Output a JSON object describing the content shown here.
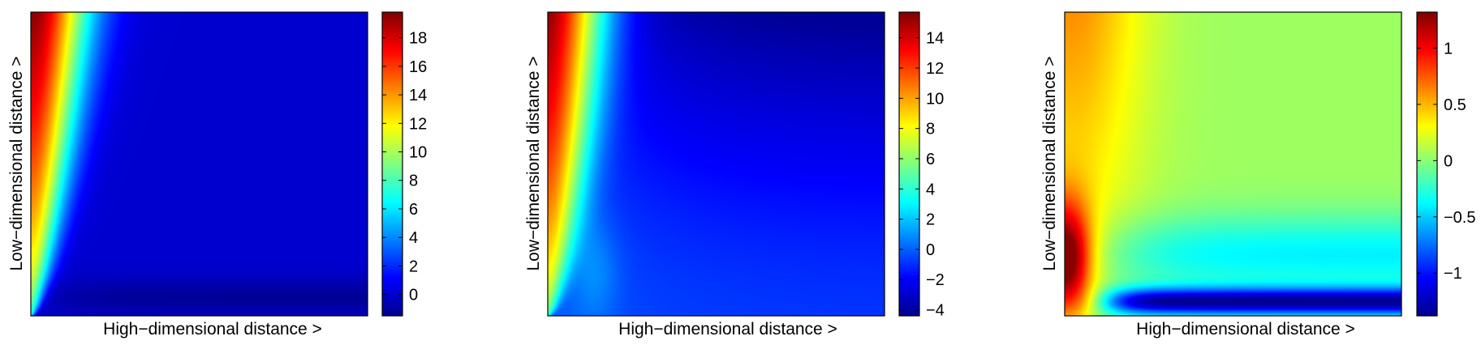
{
  "colormap": [
    "#00008f",
    "#0000ff",
    "#00ffff",
    "#ffff00",
    "#ff0000",
    "#800000"
  ],
  "chart_data": [
    {
      "type": "heatmap",
      "title": "",
      "xlabel": "High−dimensional distance >",
      "ylabel": "Low−dimensional distance >",
      "x_ticks": [],
      "y_ticks": [],
      "colorbar": {
        "min": -1.5,
        "max": 19.8,
        "ticks": [
          0,
          2,
          4,
          6,
          8,
          10,
          12,
          14,
          16,
          18
        ],
        "tick_labels": [
          "0",
          "2",
          "4",
          "6",
          "8",
          "10",
          "12",
          "14",
          "16",
          "18"
        ]
      },
      "value_range": [
        -1.5,
        19.8
      ],
      "grid": false
    },
    {
      "type": "heatmap",
      "title": "",
      "xlabel": "High−dimensional distance >",
      "ylabel": "Low−dimensional distance >",
      "x_ticks": [],
      "y_ticks": [],
      "colorbar": {
        "min": -4.4,
        "max": 15.7,
        "ticks": [
          -4,
          -2,
          0,
          2,
          4,
          6,
          8,
          10,
          12,
          14
        ],
        "tick_labels": [
          "−4",
          "−2",
          "0",
          "2",
          "4",
          "6",
          "8",
          "10",
          "12",
          "14"
        ]
      },
      "value_range": [
        -4.4,
        15.7
      ],
      "grid": false
    },
    {
      "type": "heatmap",
      "title": "",
      "xlabel": "High−dimensional distance >",
      "ylabel": "Low−dimensional distance >",
      "x_ticks": [],
      "y_ticks": [],
      "colorbar": {
        "min": -1.38,
        "max": 1.32,
        "ticks": [
          -1,
          -0.5,
          0,
          0.5,
          1
        ],
        "tick_labels": [
          "−1",
          "−0.5",
          "0",
          "0.5",
          "1"
        ]
      },
      "value_range": [
        -1.38,
        1.32
      ],
      "grid": false
    }
  ]
}
